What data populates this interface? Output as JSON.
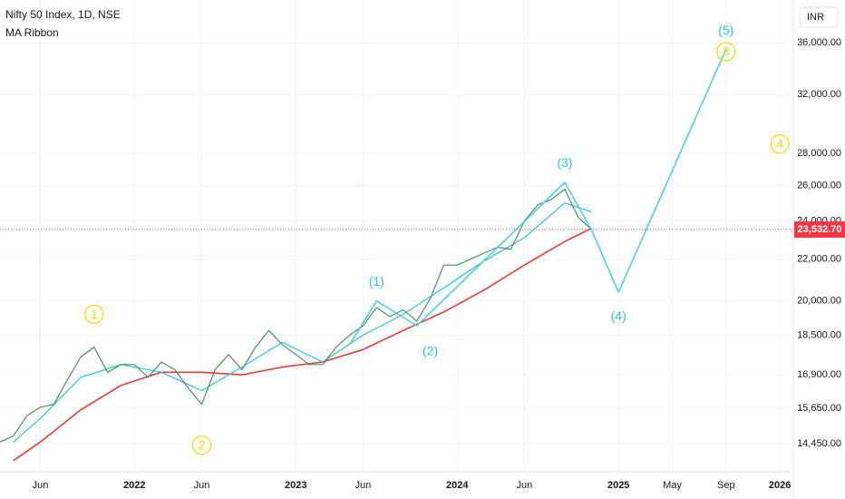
{
  "chart_data": {
    "type": "line",
    "title": "Nifty 50 Index, 1D, NSE",
    "subtitle": "MA Ribbon",
    "currency": "INR",
    "log_scale": true,
    "grid": true,
    "xlim": [
      "2021-03",
      "2026-02"
    ],
    "ylim": [
      13550,
      39700
    ],
    "yticks": [
      {
        "value": 14450,
        "label": "14,450.00"
      },
      {
        "value": 15650,
        "label": "15,650.00"
      },
      {
        "value": 16900,
        "label": "16,900.00"
      },
      {
        "value": 18500,
        "label": "18,500.00"
      },
      {
        "value": 20000,
        "label": "20,000.00"
      },
      {
        "value": 22000,
        "label": "22,000.00"
      },
      {
        "value": 24000,
        "label": "24,000.00"
      },
      {
        "value": 26000,
        "label": "26,000.00"
      },
      {
        "value": 28000,
        "label": "28,000.00"
      },
      {
        "value": 32000,
        "label": "32,000.00"
      },
      {
        "value": 36000,
        "label": "36,000.00"
      }
    ],
    "xticks": [
      {
        "value": "2021-06",
        "label": "Jun"
      },
      {
        "value": "2022-01",
        "label": "2022"
      },
      {
        "value": "2022-06",
        "label": "Jun"
      },
      {
        "value": "2023-01",
        "label": "2023"
      },
      {
        "value": "2023-06",
        "label": "Jun"
      },
      {
        "value": "2024-01",
        "label": "2024"
      },
      {
        "value": "2024-06",
        "label": "Jun"
      },
      {
        "value": "2025-01",
        "label": "2025"
      },
      {
        "value": "2025-05",
        "label": "May"
      },
      {
        "value": "2025-09",
        "label": "Sep"
      },
      {
        "value": "2026-01",
        "label": "2026"
      }
    ],
    "last_value": {
      "value": 23532.7,
      "label": "23,532.70",
      "color": "#f23645"
    },
    "series": [
      {
        "color": "#e53935",
        "width": 1.6,
        "x": [
          "2021-04",
          "2021-06",
          "2021-09",
          "2021-12",
          "2022-03",
          "2022-06",
          "2022-09",
          "2022-12",
          "2023-03",
          "2023-06",
          "2023-09",
          "2023-12",
          "2024-03",
          "2024-06",
          "2024-09",
          "2024-11"
        ],
        "values": [
          13900,
          14500,
          15600,
          16500,
          17000,
          17000,
          16900,
          17200,
          17400,
          17900,
          18700,
          19500,
          20500,
          21700,
          22900,
          23600
        ]
      },
      {
        "color": "#26c6da",
        "width": 1.2,
        "x": [
          "2021-04",
          "2021-06",
          "2021-09",
          "2021-12",
          "2022-03",
          "2022-06",
          "2022-09",
          "2022-12",
          "2023-03",
          "2023-06",
          "2023-09",
          "2023-12",
          "2024-03",
          "2024-06",
          "2024-09",
          "2024-11"
        ],
        "values": [
          14500,
          15300,
          16800,
          17300,
          17000,
          16300,
          17200,
          18200,
          17400,
          18500,
          19400,
          20600,
          21900,
          23100,
          25000,
          24500
        ]
      },
      {
        "color": "#4a8f5e",
        "width": 1.2,
        "x": [
          "2021-03",
          "2021-04",
          "2021-05",
          "2021-06",
          "2021-07",
          "2021-08",
          "2021-09",
          "2021-10",
          "2021-11",
          "2021-12",
          "2022-01",
          "2022-02",
          "2022-03",
          "2022-04",
          "2022-05",
          "2022-06",
          "2022-07",
          "2022-08",
          "2022-09",
          "2022-10",
          "2022-11",
          "2022-12",
          "2023-01",
          "2023-02",
          "2023-03",
          "2023-04",
          "2023-05",
          "2023-06",
          "2023-07",
          "2023-08",
          "2023-09",
          "2023-10",
          "2023-11",
          "2023-12",
          "2024-01",
          "2024-02",
          "2024-03",
          "2024-04",
          "2024-05",
          "2024-06",
          "2024-07",
          "2024-08",
          "2024-09",
          "2024-10",
          "2024-11"
        ],
        "values": [
          14500,
          14700,
          15400,
          15700,
          15800,
          16700,
          17600,
          18000,
          17000,
          17300,
          17300,
          16800,
          17400,
          17100,
          16400,
          15800,
          17100,
          17700,
          17100,
          18000,
          18700,
          18100,
          17700,
          17300,
          17300,
          18000,
          18500,
          18900,
          19700,
          19300,
          19600,
          19100,
          20100,
          21700,
          21700,
          22000,
          22300,
          22600,
          22500,
          24000,
          24900,
          25200,
          25800,
          24200,
          23532.7
        ]
      },
      {
        "color": "#4dd0e1",
        "width": 1.6,
        "x": [
          "2023-05",
          "2023-07",
          "2023-10",
          "2024-09",
          "2024-11",
          "2025-01",
          "2025-09"
        ],
        "values": [
          18100,
          20000,
          18900,
          26200,
          23500,
          20400,
          35500
        ]
      }
    ],
    "annotations": [
      {
        "text": "(1)",
        "x": "2023-07",
        "y": 20900,
        "color": "#26c6da",
        "circle": false
      },
      {
        "text": "(2)",
        "x": "2023-11",
        "y": 17850,
        "color": "#26c6da",
        "circle": false
      },
      {
        "text": "(3)",
        "x": "2024-09",
        "y": 27400,
        "color": "#26c6da",
        "circle": false
      },
      {
        "text": "(4)",
        "x": "2025-01",
        "y": 19330,
        "color": "#26c6da",
        "circle": false
      },
      {
        "text": "(5)",
        "x": "2025-09",
        "y": 37050,
        "color": "#26c6da",
        "circle": false
      },
      {
        "text": "1",
        "x": "2021-10",
        "y": 19400,
        "color": "#f5d800",
        "circle": true
      },
      {
        "text": "2",
        "x": "2022-06",
        "y": 14400,
        "color": "#f5d800",
        "circle": true
      },
      {
        "text": "3",
        "x": "2025-09",
        "y": 35300,
        "color": "#f5d800",
        "circle": true
      },
      {
        "text": "4",
        "x": "2026-01",
        "y": 28600,
        "color": "#f5d800",
        "circle": true
      }
    ]
  }
}
